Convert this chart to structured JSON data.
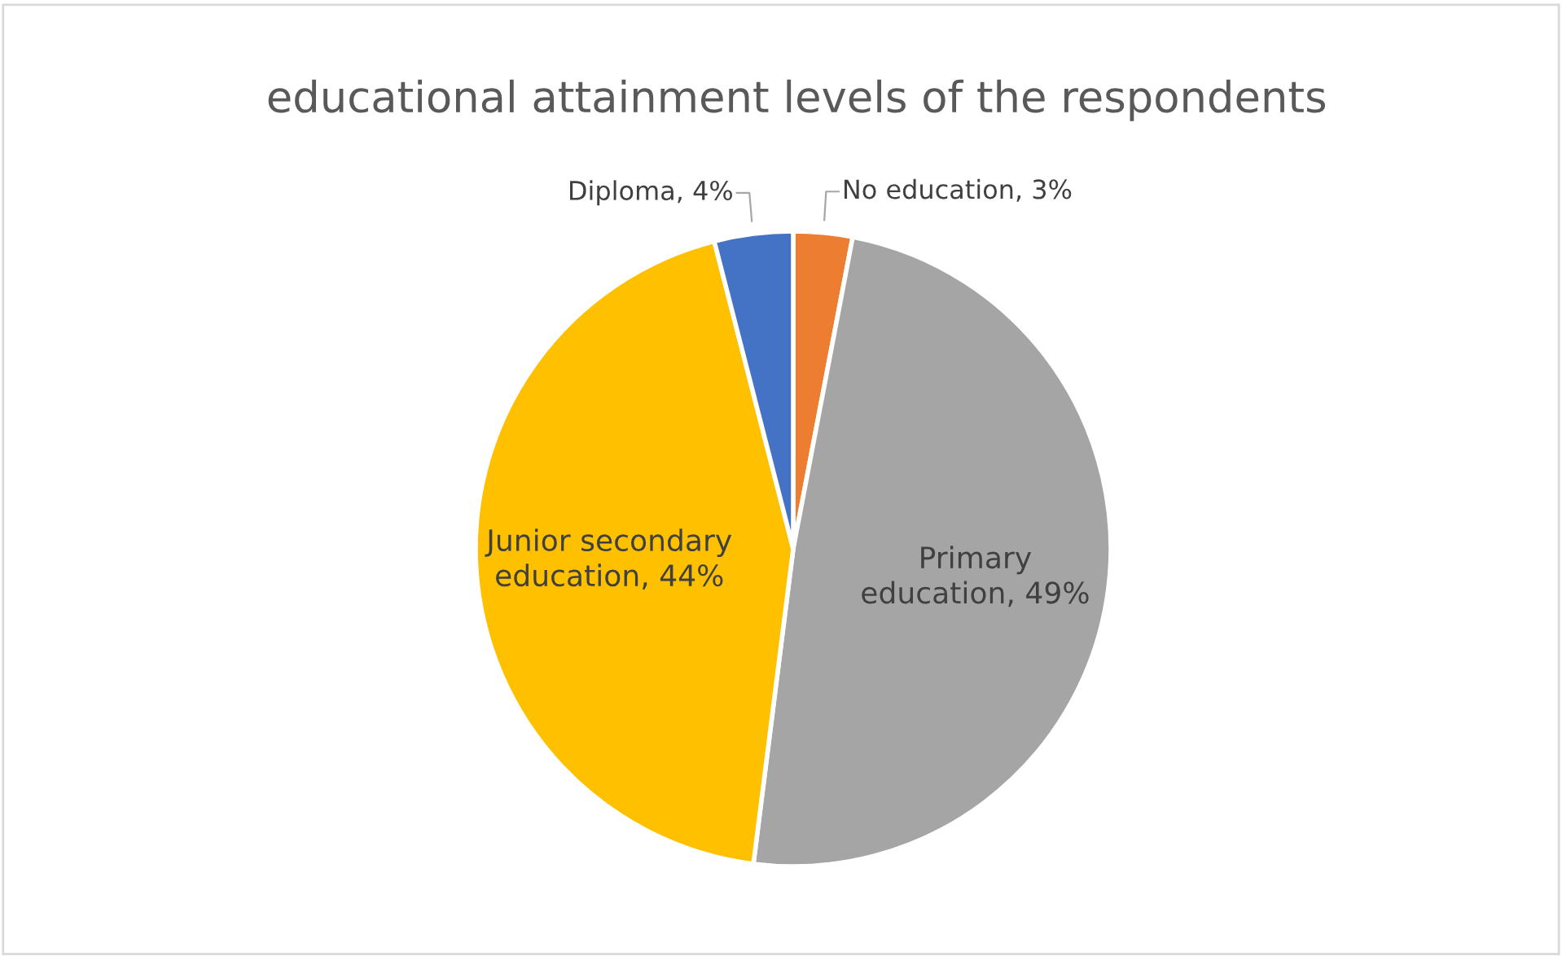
{
  "chart_data": {
    "type": "pie",
    "title": "educational attainment levels of the respondents",
    "categories": [
      "No education",
      "Primary\neducation",
      "Junior secondary\neducation",
      "Diploma"
    ],
    "values": [
      3,
      49,
      44,
      4
    ],
    "colors": [
      "#ed7d31",
      "#a5a5a5",
      "#ffc000",
      "#4472c4"
    ],
    "value_labels": [
      "3%",
      "49%",
      "44%",
      "4%"
    ],
    "legend": false
  }
}
